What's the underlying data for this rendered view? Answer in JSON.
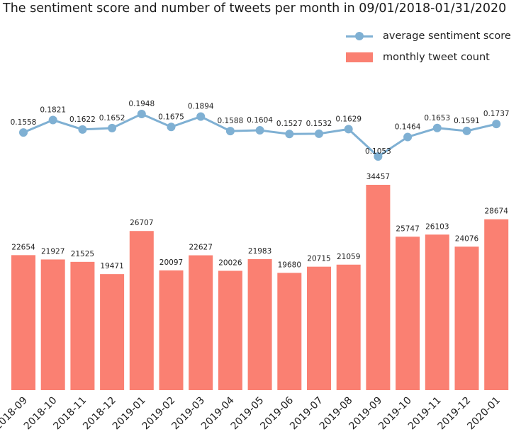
{
  "chart_data": {
    "type": "bar+line",
    "title": "The sentiment score and number of tweets per month in 09/01/2018-01/31/2020",
    "categories": [
      "2018-09",
      "2018-10",
      "2018-11",
      "2018-12",
      "2019-01",
      "2019-02",
      "2019-03",
      "2019-04",
      "2019-05",
      "2019-06",
      "2019-07",
      "2019-08",
      "2019-09",
      "2019-10",
      "2019-11",
      "2019-12",
      "2020-01"
    ],
    "series": [
      {
        "name": "average sentiment score",
        "type": "line",
        "color": "#7fb0d3",
        "values": [
          0.1558,
          0.1821,
          0.1622,
          0.1652,
          0.1948,
          0.1675,
          0.1894,
          0.1588,
          0.1604,
          0.1527,
          0.1532,
          0.1629,
          0.1053,
          0.1464,
          0.1653,
          0.1591,
          0.1737
        ],
        "labels": [
          "0.1558",
          "0.1821",
          "0.1622",
          "0.1652",
          "0.1948",
          "0.1675",
          "0.1894",
          "0.1588",
          "0.1604",
          "0.1527",
          "0.1532",
          "0.1629",
          "0.1053",
          "0.1464",
          "0.1653",
          "0.1591",
          "0.1737"
        ]
      },
      {
        "name": "monthly tweet count",
        "type": "bar",
        "color": "#fa8072",
        "values": [
          22654,
          21927,
          21525,
          19471,
          26707,
          20097,
          22627,
          20026,
          21983,
          19680,
          20715,
          21059,
          34457,
          25747,
          26103,
          24076,
          28674
        ]
      }
    ],
    "legend_position": "top-right",
    "grid": false
  }
}
